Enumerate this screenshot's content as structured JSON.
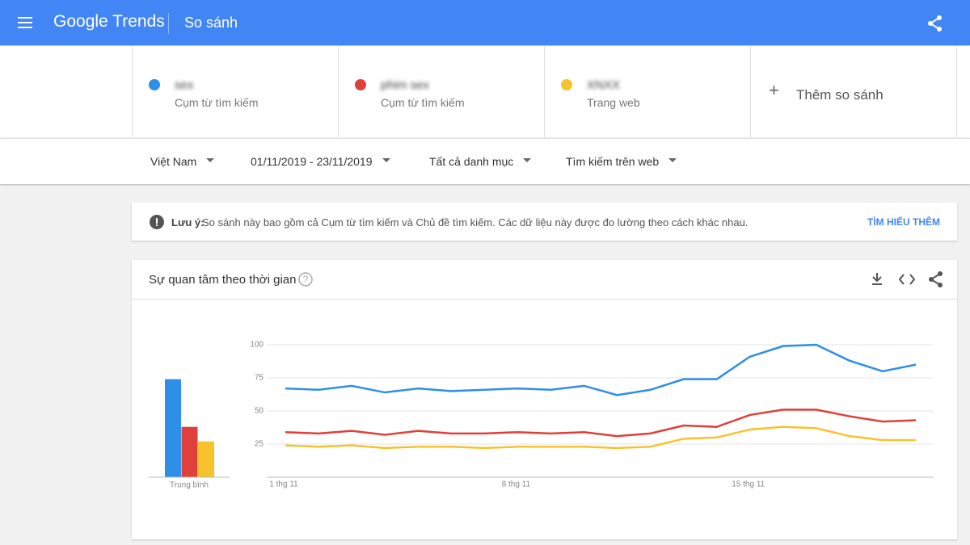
{
  "header": {
    "logo": "Google Trends",
    "page": "So sánh"
  },
  "terms": [
    {
      "kind": "Cụm từ tìm kiếm"
    },
    {
      "kind": "Cụm từ tìm kiếm"
    },
    {
      "kind": "Trang web"
    }
  ],
  "add_compare": "Thêm so sánh",
  "filters": [
    "Việt Nam",
    "01/11/2019 - 23/11/2019",
    "Tất cả danh mục",
    "Tìm kiếm trên web"
  ],
  "note": {
    "label": "Lưu ý:",
    "text": "So sánh này bao gồm cả Cụm từ tìm kiếm và Chủ đề tìm kiếm. Các dữ liệu này được đo lường theo cách khác nhau.",
    "link": "TÌM HIỂU THÊM"
  },
  "chart_data": [
    {
      "type": "line",
      "title": "Sự quan tâm theo thời gian",
      "categories": [
        "1 thg 11",
        null,
        null,
        null,
        null,
        null,
        null,
        "8 thg 11",
        null,
        null,
        null,
        null,
        null,
        null,
        "15 thg 11",
        null,
        null,
        null,
        null,
        null
      ],
      "series": [
        {
          "name": "sex",
          "color": "#2d8fe8",
          "values": [
            67,
            66,
            69,
            64,
            67,
            65,
            66,
            67,
            66,
            69,
            62,
            66,
            74,
            74,
            91,
            99,
            100,
            88,
            80,
            85
          ]
        },
        {
          "name": "phim sex",
          "color": "#e0403a",
          "values": [
            34,
            33,
            35,
            32,
            35,
            33,
            33,
            34,
            33,
            34,
            31,
            33,
            39,
            38,
            47,
            51,
            51,
            46,
            42,
            43
          ]
        },
        {
          "name": "XNXX",
          "color": "#f7c22c",
          "values": [
            24,
            23,
            24,
            22,
            23,
            23,
            22,
            23,
            23,
            23,
            22,
            23,
            29,
            30,
            36,
            38,
            37,
            31,
            28,
            28
          ]
        }
      ],
      "ylim": [
        0,
        100
      ],
      "yticks": [
        25,
        50,
        75,
        100
      ],
      "grid": true
    },
    {
      "type": "bar",
      "categories": [
        "Trung bình"
      ],
      "series": [
        {
          "color": "#2d8fe8",
          "values": [
            74
          ]
        },
        {
          "color": "#e0403a",
          "values": [
            38
          ]
        },
        {
          "color": "#f7c22c",
          "values": [
            27
          ]
        }
      ],
      "ylim": [
        0,
        100
      ]
    }
  ]
}
